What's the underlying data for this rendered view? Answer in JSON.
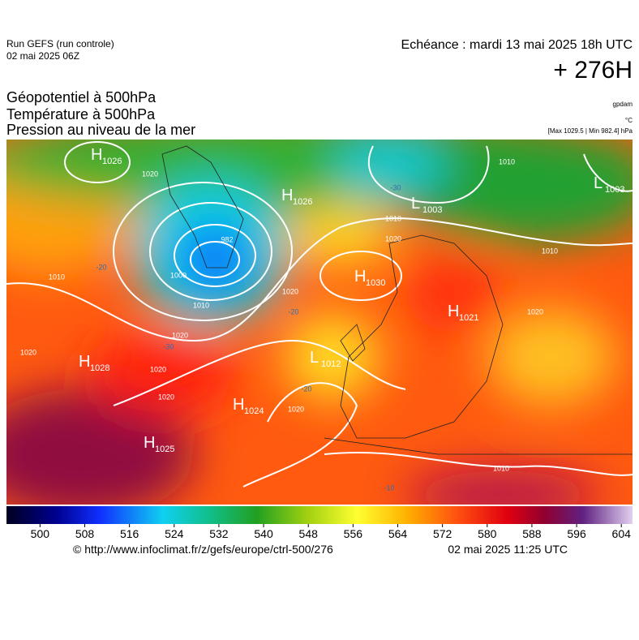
{
  "header": {
    "run": "Run GEFS (run controle)",
    "run_date": "02 mai 2025 06Z",
    "valid": "Echéance : mardi 13 mai 2025 18h UTC",
    "lead": "+ 276H"
  },
  "titles": [
    "Géopotentiel à 500hPa",
    "Température à 500hPa",
    "Pression au niveau de la mer"
  ],
  "units": [
    "gpdam",
    "°C",
    "[Max 1029.5 | Min 982.4] hPa"
  ],
  "pressure_centers": [
    {
      "type": "H",
      "value": "1026"
    },
    {
      "type": "H",
      "value": "1026"
    },
    {
      "type": "L",
      "value": "1003"
    },
    {
      "type": "L",
      "value": "1003"
    },
    {
      "type": "H",
      "value": "1030"
    },
    {
      "type": "H",
      "value": "1021"
    },
    {
      "type": "H",
      "value": "1028"
    },
    {
      "type": "L",
      "value": "1012"
    },
    {
      "type": "H",
      "value": "1024"
    },
    {
      "type": "H",
      "value": "1025"
    }
  ],
  "isobar_labels": [
    "1020",
    "982",
    "1000",
    "1010",
    "1010",
    "1020",
    "1020",
    "1020",
    "1020",
    "1020",
    "1010",
    "1010",
    "1010",
    "1020",
    "1020",
    "1010",
    "1020"
  ],
  "temperature_labels": [
    "-20",
    "-30",
    "-30",
    "-20",
    "-10",
    "-20"
  ],
  "colorbar": {
    "range": [
      494,
      606
    ],
    "ticks": [
      500,
      508,
      516,
      524,
      532,
      540,
      548,
      556,
      564,
      572,
      580,
      588,
      596,
      604
    ]
  },
  "footer": {
    "source": "© http://www.infoclimat.fr/z/gefs/europe/ctrl-500/276",
    "generated": "02 mai 2025 11:25 UTC"
  }
}
